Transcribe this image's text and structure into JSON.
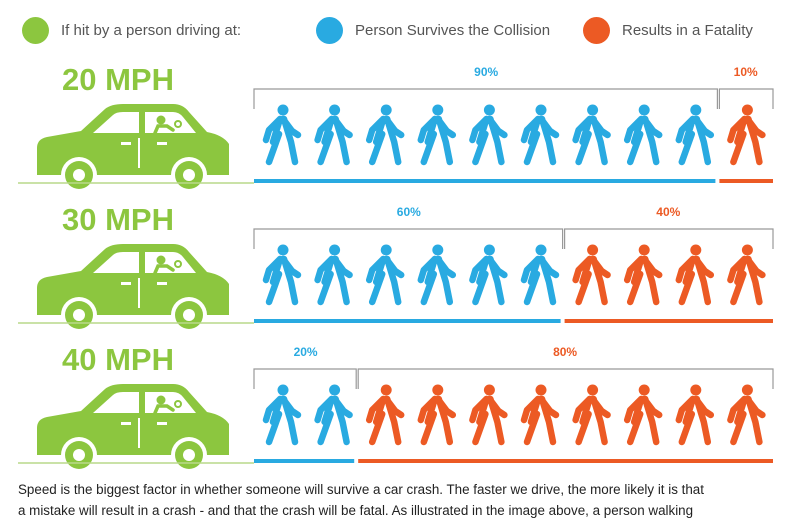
{
  "colors": {
    "survive": "#29aae1",
    "fatal": "#ec5a24",
    "car": "#8cc63f",
    "bracket": "#999999",
    "ground": "#b9d98a"
  },
  "legend": [
    {
      "label": "If hit by a person driving at:",
      "color": "#8cc63f",
      "icon": "green-circle-icon"
    },
    {
      "label": "Person Survives the Collision",
      "color": "#29aae1",
      "icon": "blue-circle-icon"
    },
    {
      "label": "Results in a Fatality",
      "color": "#ec5a24",
      "icon": "red-circle-icon"
    }
  ],
  "chart_data": {
    "type": "bar",
    "categories": [
      "20 MPH",
      "30 MPH",
      "40 MPH"
    ],
    "series": [
      {
        "name": "Person Survives the Collision",
        "values": [
          90,
          60,
          20
        ],
        "labels": [
          "90%",
          "60%",
          "20%"
        ]
      },
      {
        "name": "Results in a Fatality",
        "values": [
          10,
          40,
          80
        ],
        "labels": [
          "10%",
          "40%",
          "80%"
        ]
      }
    ],
    "unit": "%",
    "total": 100,
    "icons_per_row": 10
  },
  "caption": {
    "line1": "Speed is the biggest factor in whether someone will survive a car crash. The faster we drive, the more likely it is that",
    "line2": "a mistake will result in a crash - and that the crash will be fatal. As illustrated in the image above, a person walking"
  }
}
